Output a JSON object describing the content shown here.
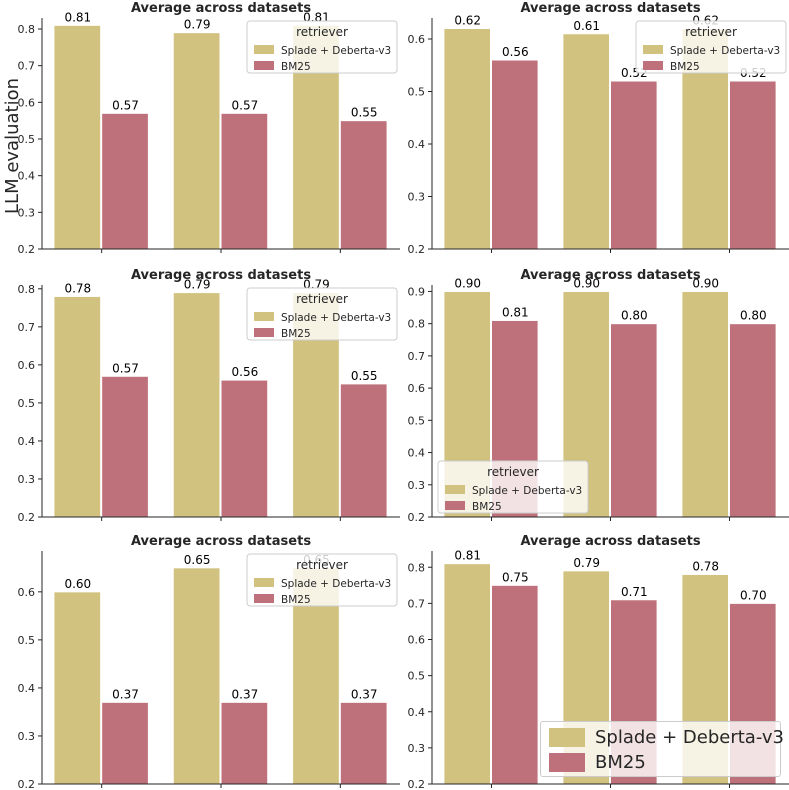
{
  "figure": {
    "y_axis_label": "LLM evaluation",
    "colors": {
      "splade": "#d1c27f",
      "bm25": "#bf717b",
      "axis": "#262626"
    }
  },
  "big_legend": {
    "entries": [
      {
        "label": "Splade + Deberta-v3",
        "color": "#d1c27f"
      },
      {
        "label": "BM25",
        "color": "#bf717b"
      }
    ]
  },
  "chart_data": [
    {
      "type": "bar",
      "title": "Average across datasets",
      "categories": [
        "",
        "",
        ""
      ],
      "series": [
        {
          "name": "Splade + Deberta-v3",
          "values": [
            0.81,
            0.79,
            0.81
          ]
        },
        {
          "name": "BM25",
          "values": [
            0.57,
            0.57,
            0.55
          ]
        }
      ],
      "data_labels": {
        "Splade + Deberta-v3": [
          "0.81",
          "0.79",
          "0.81"
        ],
        "BM25": [
          "0.57",
          "0.57",
          "0.55"
        ]
      },
      "ylim": [
        0.2,
        0.83
      ],
      "yticks": [
        0.2,
        0.3,
        0.4,
        0.5,
        0.6,
        0.7,
        0.8
      ],
      "legend": {
        "title": "retriever",
        "entries": [
          "Splade + Deberta-v3",
          "BM25"
        ],
        "placement": "top-right"
      }
    },
    {
      "type": "bar",
      "title": "Average across datasets",
      "categories": [
        "",
        "",
        ""
      ],
      "series": [
        {
          "name": "Splade + Deberta-v3",
          "values": [
            0.62,
            0.61,
            0.62
          ]
        },
        {
          "name": "BM25",
          "values": [
            0.56,
            0.52,
            0.52
          ]
        }
      ],
      "data_labels": {
        "Splade + Deberta-v3": [
          "0.62",
          "0.61",
          "0.62"
        ],
        "BM25": [
          "0.56",
          "0.52",
          "0.52"
        ]
      },
      "ylim": [
        0.2,
        0.64
      ],
      "yticks": [
        0.2,
        0.3,
        0.4,
        0.5,
        0.6
      ],
      "legend": {
        "title": "retriever",
        "entries": [
          "Splade + Deberta-v3",
          "BM25"
        ],
        "placement": "top-right"
      }
    },
    {
      "type": "bar",
      "title": "Average across datasets",
      "categories": [
        "",
        "",
        ""
      ],
      "series": [
        {
          "name": "Splade + Deberta-v3",
          "values": [
            0.78,
            0.79,
            0.79
          ]
        },
        {
          "name": "BM25",
          "values": [
            0.57,
            0.56,
            0.55
          ]
        }
      ],
      "data_labels": {
        "Splade + Deberta-v3": [
          "0.78",
          "0.79",
          "0.79"
        ],
        "BM25": [
          "0.57",
          "0.56",
          "0.55"
        ]
      },
      "ylim": [
        0.2,
        0.81
      ],
      "yticks": [
        0.2,
        0.3,
        0.4,
        0.5,
        0.6,
        0.7,
        0.8
      ],
      "legend": {
        "title": "retriever",
        "entries": [
          "Splade + Deberta-v3",
          "BM25"
        ],
        "placement": "top-right"
      }
    },
    {
      "type": "bar",
      "title": "Average across datasets",
      "categories": [
        "",
        "",
        ""
      ],
      "series": [
        {
          "name": "Splade + Deberta-v3",
          "values": [
            0.9,
            0.9,
            0.9
          ]
        },
        {
          "name": "BM25",
          "values": [
            0.81,
            0.8,
            0.8
          ]
        }
      ],
      "data_labels": {
        "Splade + Deberta-v3": [
          "0.90",
          "0.90",
          "0.90"
        ],
        "BM25": [
          "0.81",
          "0.80",
          "0.80"
        ]
      },
      "ylim": [
        0.2,
        0.92
      ],
      "yticks": [
        0.2,
        0.3,
        0.4,
        0.5,
        0.6,
        0.7,
        0.8,
        0.9
      ],
      "legend": {
        "title": "retriever",
        "entries": [
          "Splade + Deberta-v3",
          "BM25"
        ],
        "placement": "lower-left"
      }
    },
    {
      "type": "bar",
      "title": "Average across datasets",
      "categories": [
        "",
        "",
        ""
      ],
      "series": [
        {
          "name": "Splade + Deberta-v3",
          "values": [
            0.6,
            0.65,
            0.65
          ]
        },
        {
          "name": "BM25",
          "values": [
            0.37,
            0.37,
            0.37
          ]
        }
      ],
      "data_labels": {
        "Splade + Deberta-v3": [
          "0.60",
          "0.65",
          "0.65"
        ],
        "BM25": [
          "0.37",
          "0.37",
          "0.37"
        ]
      },
      "ylim": [
        0.2,
        0.685
      ],
      "yticks": [
        0.2,
        0.3,
        0.4,
        0.5,
        0.6
      ],
      "legend": {
        "title": "retriever",
        "entries": [
          "Splade + Deberta-v3",
          "BM25"
        ],
        "placement": "top-right"
      }
    },
    {
      "type": "bar",
      "title": "Average across datasets",
      "categories": [
        "",
        "",
        ""
      ],
      "series": [
        {
          "name": "Splade + Deberta-v3",
          "values": [
            0.81,
            0.79,
            0.78
          ]
        },
        {
          "name": "BM25",
          "values": [
            0.75,
            0.71,
            0.7
          ]
        }
      ],
      "data_labels": {
        "Splade + Deberta-v3": [
          "0.81",
          "0.79",
          "0.78"
        ],
        "BM25": [
          "0.75",
          "0.71",
          "0.70"
        ]
      },
      "ylim": [
        0.2,
        0.845
      ],
      "yticks": [
        0.2,
        0.3,
        0.4,
        0.5,
        0.6,
        0.7,
        0.8
      ],
      "legend": null
    }
  ]
}
